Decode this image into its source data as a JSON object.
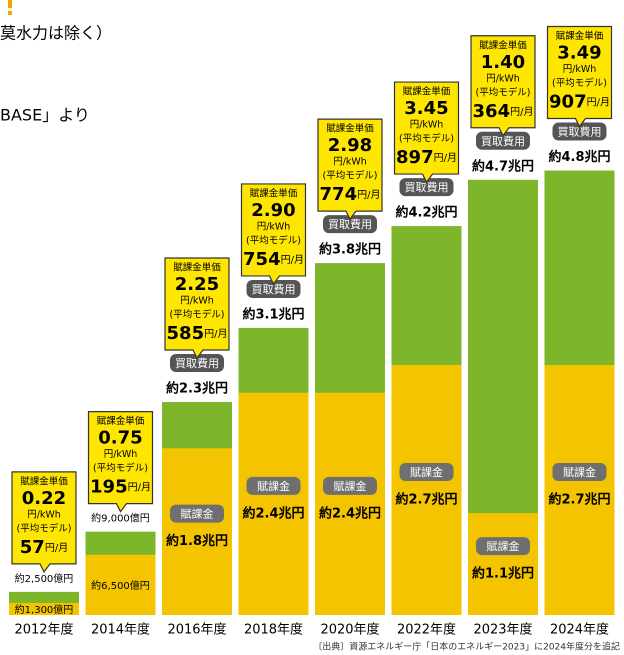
{
  "header": {
    "notes": [
      "莫水力は除く）",
      "BASE」より"
    ]
  },
  "chart_data": {
    "type": "bar",
    "categories": [
      "2012年度",
      "2014年度",
      "2016年度",
      "2018年度",
      "2020年度",
      "2022年度",
      "2023年度",
      "2024年度"
    ],
    "series": [
      {
        "name": "買取費用",
        "color": "#7db62b",
        "values": [
          2500,
          9000,
          23000,
          31000,
          38000,
          42000,
          47000,
          48000
        ],
        "value_labels": [
          "約2,500億円",
          "約9,000億円",
          "約2.3兆円",
          "約3.1兆円",
          "約3.8兆円",
          "約4.2兆円",
          "約4.7兆円",
          "約4.8兆円"
        ]
      },
      {
        "name": "賦課金",
        "color": "#f5c400",
        "values": [
          1300,
          6500,
          18000,
          24000,
          24000,
          27000,
          11000,
          27000
        ],
        "value_labels": [
          "約1,300億円",
          "約6,500億円",
          "約1.8兆円",
          "約2.4兆円",
          "約2.4兆円",
          "約2.7兆円",
          "約1.1兆円",
          "約2.7兆円"
        ]
      }
    ],
    "ylim": [
      0,
      50000
    ],
    "callout": {
      "title": "賦課金単価",
      "rate_unit": "円/kWh",
      "model": "(平均モデル)",
      "monthly_unit": "円/月",
      "rates": [
        0.22,
        0.75,
        2.25,
        2.9,
        2.98,
        3.45,
        1.4,
        3.49
      ],
      "rate_labels": [
        "0.22",
        "0.75",
        "2.25",
        "2.90",
        "2.98",
        "3.45",
        "1.40",
        "3.49"
      ],
      "monthly": [
        57,
        195,
        585,
        754,
        774,
        897,
        364,
        907
      ]
    },
    "source": "〔出典〕資源エネルギー庁「日本のエネルギー2023」に2024年度分を追記"
  }
}
